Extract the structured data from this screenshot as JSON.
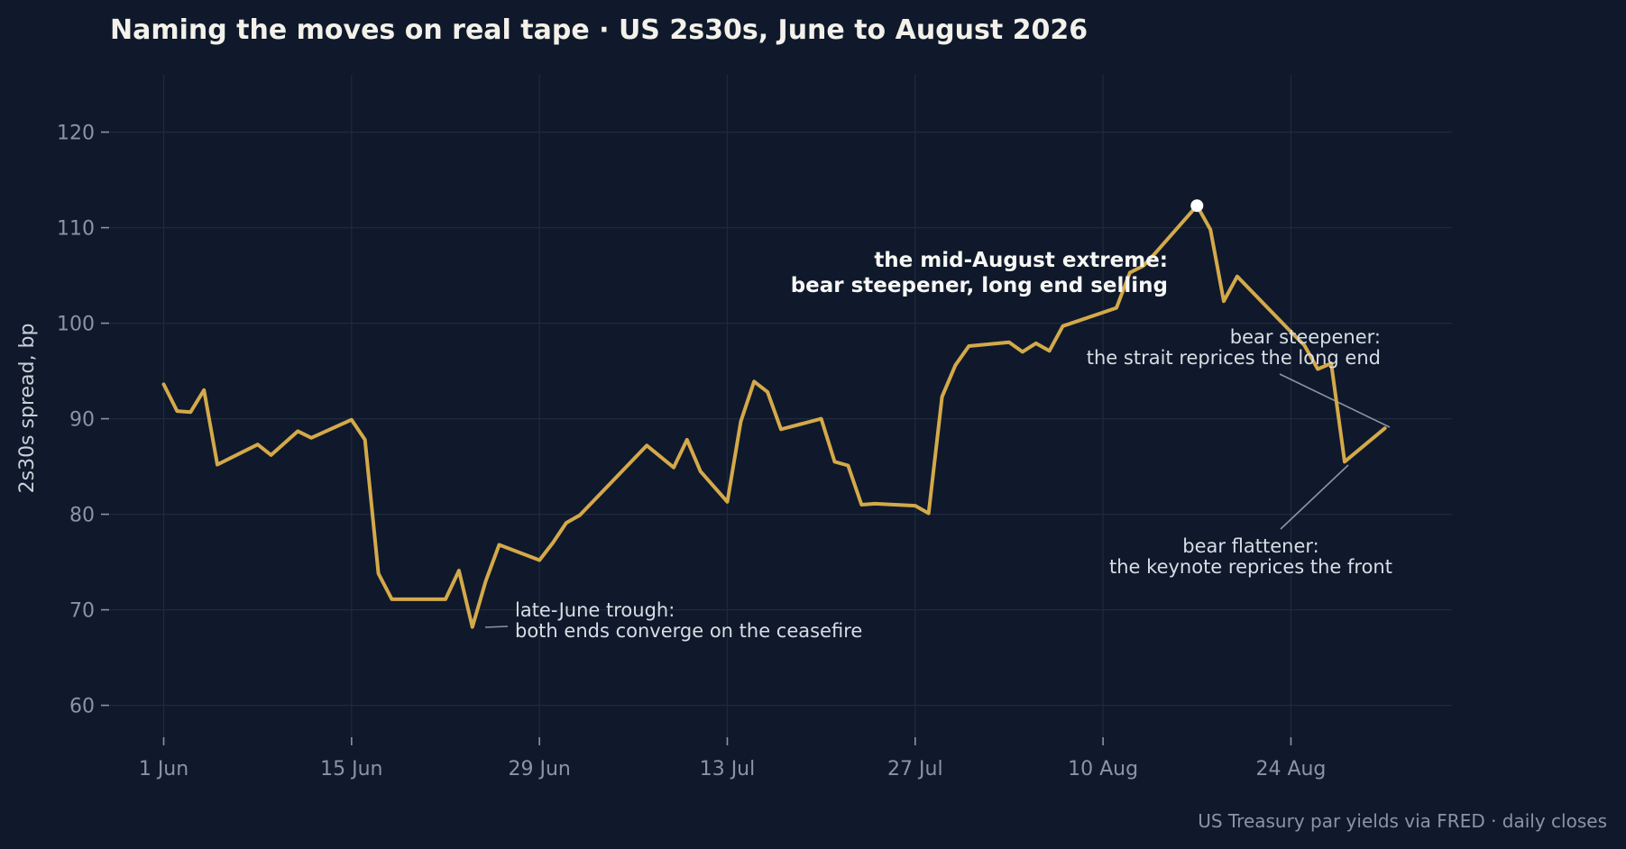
{
  "title": "Naming the moves on real tape  ·  US 2s30s, June to August 2026",
  "source": "US Treasury par yields via FRED · daily closes",
  "colors": {
    "background": "#0f192b",
    "line": "#d4a94a",
    "marker": "#ffffff",
    "grid": "#1f2a3c",
    "text": "#f3f1ea",
    "muted": "#8a94a4"
  },
  "chart_data": {
    "type": "line",
    "title": "Naming the moves on real tape  ·  US 2s30s, June to August 2026",
    "xlabel": "",
    "ylabel": "2s30s spread, bp",
    "ylim": [
      56,
      126
    ],
    "xlim": [
      "2026-05-28",
      "2026-09-05"
    ],
    "grid": true,
    "yticks": [
      60,
      70,
      80,
      90,
      100,
      110,
      120
    ],
    "xticks": [
      {
        "date": "2026-06-01",
        "label": "1 Jun"
      },
      {
        "date": "2026-06-15",
        "label": "15 Jun"
      },
      {
        "date": "2026-06-29",
        "label": "29 Jun"
      },
      {
        "date": "2026-07-13",
        "label": "13 Jul"
      },
      {
        "date": "2026-07-27",
        "label": "27 Jul"
      },
      {
        "date": "2026-08-10",
        "label": "10 Aug"
      },
      {
        "date": "2026-08-24",
        "label": "24 Aug"
      }
    ],
    "series": [
      {
        "points": [
          [
            "2026-06-01",
            93.6
          ],
          [
            "2026-06-02",
            90.8
          ],
          [
            "2026-06-03",
            90.7
          ],
          [
            "2026-06-04",
            93.0
          ],
          [
            "2026-06-05",
            85.2
          ],
          [
            "2026-06-08",
            87.3
          ],
          [
            "2026-06-09",
            86.2
          ],
          [
            "2026-06-11",
            88.7
          ],
          [
            "2026-06-12",
            88.0
          ],
          [
            "2026-06-15",
            89.9
          ],
          [
            "2026-06-16",
            87.8
          ],
          [
            "2026-06-17",
            73.8
          ],
          [
            "2026-06-18",
            71.1
          ],
          [
            "2026-06-22",
            71.1
          ],
          [
            "2026-06-23",
            74.1
          ],
          [
            "2026-06-24",
            68.2
          ],
          [
            "2026-06-25",
            73.0
          ],
          [
            "2026-06-26",
            76.8
          ],
          [
            "2026-06-29",
            75.2
          ],
          [
            "2026-06-30",
            77.0
          ],
          [
            "2026-07-01",
            79.1
          ],
          [
            "2026-07-02",
            79.9
          ],
          [
            "2026-07-07",
            87.2
          ],
          [
            "2026-07-09",
            84.9
          ],
          [
            "2026-07-10",
            87.8
          ],
          [
            "2026-07-11",
            84.5
          ],
          [
            "2026-07-13",
            81.3
          ],
          [
            "2026-07-14",
            89.7
          ],
          [
            "2026-07-15",
            93.9
          ],
          [
            "2026-07-16",
            92.8
          ],
          [
            "2026-07-17",
            88.9
          ],
          [
            "2026-07-20",
            90.0
          ],
          [
            "2026-07-21",
            85.5
          ],
          [
            "2026-07-22",
            85.1
          ],
          [
            "2026-07-23",
            81.0
          ],
          [
            "2026-07-24",
            81.1
          ],
          [
            "2026-07-27",
            80.9
          ],
          [
            "2026-07-28",
            80.1
          ],
          [
            "2026-07-29",
            92.3
          ],
          [
            "2026-07-30",
            95.6
          ],
          [
            "2026-07-31",
            97.6
          ],
          [
            "2026-08-03",
            98.0
          ],
          [
            "2026-08-04",
            97.0
          ],
          [
            "2026-08-05",
            97.9
          ],
          [
            "2026-08-06",
            97.1
          ],
          [
            "2026-08-07",
            99.7
          ],
          [
            "2026-08-11",
            101.6
          ],
          [
            "2026-08-12",
            105.3
          ],
          [
            "2026-08-13",
            106.0
          ],
          [
            "2026-08-14",
            107.5
          ],
          [
            "2026-08-17",
            112.3
          ],
          [
            "2026-08-18",
            109.8
          ],
          [
            "2026-08-19",
            102.3
          ],
          [
            "2026-08-20",
            104.9
          ],
          [
            "2026-08-24",
            99.1
          ],
          [
            "2026-08-25",
            97.7
          ],
          [
            "2026-08-26",
            95.2
          ],
          [
            "2026-08-27",
            95.8
          ],
          [
            "2026-08-28",
            85.5
          ],
          [
            "2026-08-31",
            89.0
          ]
        ]
      }
    ],
    "highlight": {
      "date": "2026-08-17",
      "value": 112.3
    },
    "annotations": [
      {
        "id": "trough",
        "lines": [
          "late-June trough:",
          "both ends converge on the ceasefire"
        ],
        "point": [
          "2026-06-24",
          68.2
        ]
      },
      {
        "id": "extreme",
        "lines": [
          "the mid-August extreme:",
          "bear steepener, long end selling"
        ],
        "point": [
          "2026-08-17",
          112.3
        ]
      },
      {
        "id": "steepener",
        "lines": [
          "bear steepener:",
          "the strait reprices the long end"
        ],
        "point": [
          "2026-08-31",
          89.0
        ]
      },
      {
        "id": "flattener",
        "lines": [
          "bear flattener:",
          "the keynote reprices the front"
        ],
        "point": [
          "2026-08-28",
          85.5
        ]
      }
    ]
  }
}
